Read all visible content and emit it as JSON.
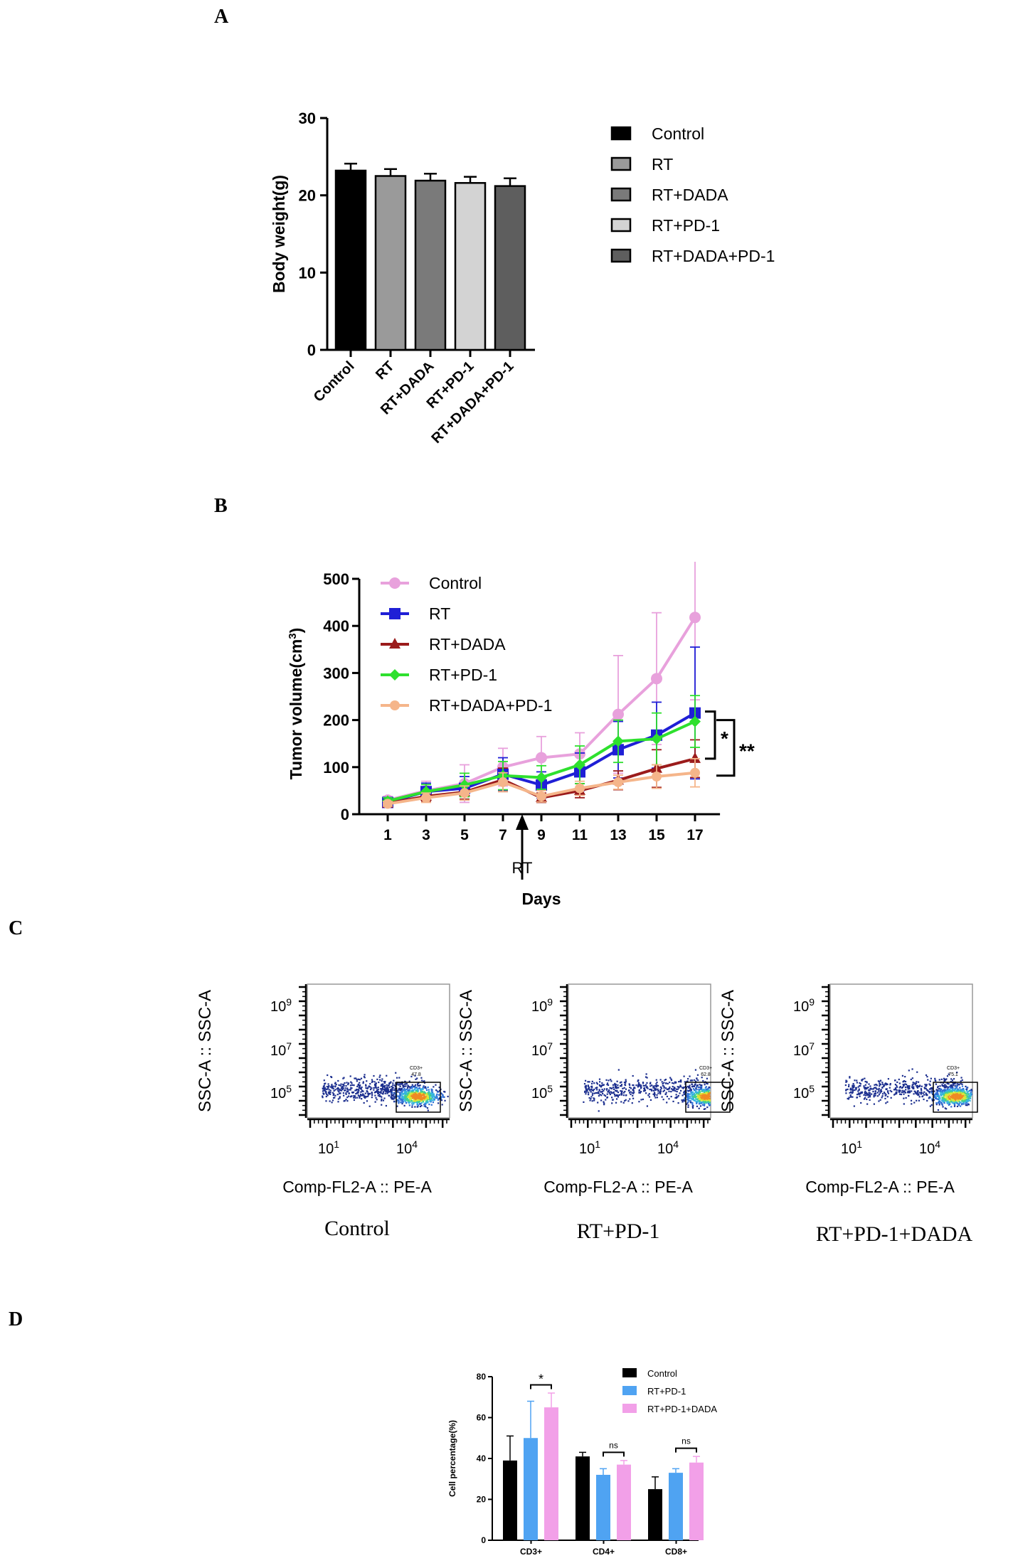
{
  "panels": {
    "a": "A",
    "b": "B",
    "c": "C",
    "d": "D"
  },
  "colors": {
    "control_bar_a": "#000000",
    "rt_bar_a": "#9a9a9a",
    "rtdada_bar_a": "#7a7a7a",
    "rtpd1_bar_a": "#d3d3d3",
    "rtdadapd1_bar_a": "#5e5e5e",
    "control_line": "#e8a1dc",
    "rt_line": "#1f1fd6",
    "rtdada_line": "#9b1b1b",
    "rtpd1_line": "#2ee02e",
    "rtdadapd1_line": "#f5b58a",
    "control_d": "#000000",
    "rtpd1_d": "#4fa3f2",
    "rtpd1dada_d": "#f2a0e8"
  },
  "chart_data": [
    {
      "type": "bar",
      "title": "",
      "xlabel": "",
      "ylabel": "Body weight(g)",
      "ylim": [
        0,
        30
      ],
      "yticks": [
        "0",
        "10",
        "20",
        "30"
      ],
      "categories": [
        "Control",
        "RT",
        "RT+DADA",
        "RT+PD-1",
        "RT+DADA+PD-1"
      ],
      "values": [
        23.2,
        22.5,
        21.9,
        21.6,
        21.2
      ],
      "errors": [
        0.9,
        0.9,
        0.9,
        0.8,
        1.0
      ],
      "legend": [
        "Control",
        "RT",
        "RT+DADA",
        "RT+PD-1",
        "RT+DADA+PD-1"
      ],
      "legend_position": "right"
    },
    {
      "type": "line",
      "title": "",
      "xlabel": "Days",
      "ylabel": "Tumor volume(cm",
      "ylabel_sup": "3",
      "ylabel_close": ")",
      "ylim": [
        0,
        500
      ],
      "yticks": [
        "0",
        "100",
        "200",
        "300",
        "400",
        "500"
      ],
      "x": [
        1,
        3,
        5,
        7,
        9,
        11,
        13,
        15,
        17
      ],
      "xticks": [
        "1",
        "3",
        "5",
        "7",
        "9",
        "11",
        "13",
        "15",
        "17"
      ],
      "annotation": "RT",
      "annotation_day": 8,
      "sig_labels": [
        "*",
        "**"
      ],
      "series": [
        {
          "name": "Control",
          "values": [
            30,
            50,
            65,
            100,
            120,
            128,
            212,
            288,
            418
          ],
          "errors": [
            8,
            20,
            40,
            40,
            45,
            45,
            125,
            140,
            175
          ]
        },
        {
          "name": "RT",
          "values": [
            25,
            48,
            55,
            85,
            62,
            90,
            137,
            168,
            215
          ],
          "errors": [
            6,
            18,
            25,
            35,
            28,
            40,
            60,
            70,
            140
          ]
        },
        {
          "name": "RT+DADA",
          "values": [
            23,
            38,
            47,
            73,
            35,
            50,
            72,
            97,
            118
          ],
          "errors": [
            6,
            10,
            15,
            25,
            10,
            15,
            20,
            40,
            40
          ]
        },
        {
          "name": "RT+PD-1",
          "values": [
            28,
            48,
            62,
            82,
            78,
            105,
            155,
            160,
            197
          ],
          "errors": [
            7,
            15,
            25,
            30,
            25,
            40,
            45,
            55,
            55
          ]
        },
        {
          "name": "RT+DADA+PD-1",
          "values": [
            22,
            35,
            45,
            68,
            38,
            55,
            68,
            80,
            88
          ],
          "errors": [
            5,
            10,
            15,
            20,
            12,
            15,
            15,
            25,
            30
          ]
        }
      ]
    },
    {
      "type": "bar",
      "title": "",
      "xlabel": "",
      "ylabel": "Cell percentage(%)",
      "ylim": [
        0,
        80
      ],
      "yticks": [
        "0",
        "20",
        "40",
        "60",
        "80"
      ],
      "categories": [
        "CD3+",
        "CD4+",
        "CD8+"
      ],
      "series": [
        {
          "name": "Control",
          "values": [
            39,
            41,
            25
          ],
          "errors": [
            12,
            2,
            6
          ]
        },
        {
          "name": "RT+PD-1",
          "values": [
            50,
            32,
            33
          ],
          "errors": [
            18,
            3,
            2
          ]
        },
        {
          "name": "RT+PD-1+DADA",
          "values": [
            65,
            37,
            38
          ],
          "errors": [
            7,
            2,
            3
          ]
        }
      ],
      "significance": [
        "*",
        "ns",
        "ns"
      ],
      "legend_position": "top-right"
    }
  ],
  "flow": {
    "x_label": "Comp-FL2-A :: PE-A",
    "y_label": "SSC-A :: SSC-A",
    "x_ticks": [
      {
        "base": "10",
        "exp": "1"
      },
      {
        "base": "10",
        "exp": "4"
      }
    ],
    "y_ticks": [
      {
        "base": "10",
        "exp": "9"
      },
      {
        "base": "10",
        "exp": "7"
      },
      {
        "base": "10",
        "exp": "5"
      }
    ],
    "plots": [
      {
        "group": "Control",
        "gate_name": "CD3+",
        "gate_value": "47.8"
      },
      {
        "group": "RT+PD-1",
        "gate_name": "CD3+",
        "gate_value": "62.8"
      },
      {
        "group": "RT+PD-1+DADA",
        "gate_name": "CD3+",
        "gate_value": "75.1"
      }
    ]
  }
}
